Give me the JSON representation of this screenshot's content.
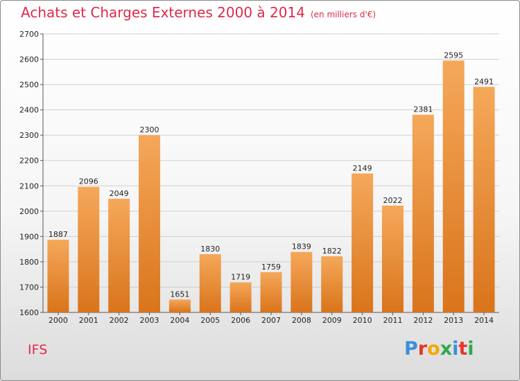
{
  "title": "Achats et Charges Externes 2000 à 2014",
  "unit": "(en milliers d'€)",
  "commune": "IFS",
  "logo": {
    "text": "Proxiti",
    "letters": [
      {
        "ch": "P",
        "color": "#3a8fd8"
      },
      {
        "ch": "r",
        "color": "#e8362a"
      },
      {
        "ch": "o",
        "color": "#f2a900"
      },
      {
        "ch": "x",
        "color": "#2fa84f"
      },
      {
        "ch": "i",
        "color": "#3a8fd8"
      },
      {
        "ch": "t",
        "color": "#e8362a"
      },
      {
        "ch": "i",
        "color": "#2fa84f"
      }
    ]
  },
  "colors": {
    "title": "#e0284a",
    "bar_top": "#f5a85a",
    "bar_bottom": "#d9741b"
  },
  "chart_data": {
    "type": "bar",
    "categories": [
      "2000",
      "2001",
      "2002",
      "2003",
      "2004",
      "2005",
      "2006",
      "2007",
      "2008",
      "2009",
      "2010",
      "2011",
      "2012",
      "2013",
      "2014"
    ],
    "values": [
      1887,
      2096,
      2049,
      2300,
      1651,
      1830,
      1719,
      1759,
      1839,
      1822,
      2149,
      2022,
      2381,
      2595,
      2491
    ],
    "ylim": [
      1600,
      2700
    ],
    "yticks": [
      1600,
      1700,
      1800,
      1900,
      2000,
      2100,
      2200,
      2300,
      2400,
      2500,
      2600,
      2700
    ],
    "grid": true
  }
}
